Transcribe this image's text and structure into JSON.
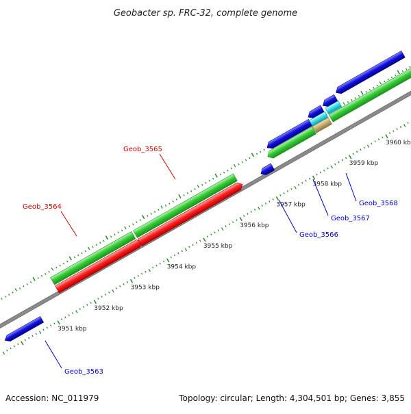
{
  "title": "Geobacter sp. FRC-32, complete genome",
  "footer": {
    "accession": "Accession: NC_011979",
    "summary": "Topology: circular; Length: 4,304,501 bp; Genes: 3,855"
  },
  "colors": {
    "backbone": "#8a8a8a",
    "ticks": "#2e8b2e",
    "label_red": "#cc0000",
    "label_blue": "#0000cc",
    "green_gene": "#33cc33",
    "red_gene": "#ff2020",
    "blue_gene": "#1111dd",
    "cyan_gene": "#33e0f0",
    "tan_gene": "#c8b070"
  },
  "ruler": {
    "unit": "kbp",
    "labels": [
      "3951 kbp",
      "3952 kbp",
      "3953 kbp",
      "3954 kbp",
      "3955 kbp",
      "3956 kbp",
      "3957 kbp",
      "3958 kbp",
      "3959 kbp",
      "3960 kbp"
    ]
  },
  "gene_labels": {
    "geob_3563": "Geob_3563",
    "geob_3564": "Geob_3564",
    "geob_3565": "Geob_3565",
    "geob_3566": "Geob_3566",
    "geob_3567": "Geob_3567",
    "geob_3568": "Geob_3568"
  }
}
